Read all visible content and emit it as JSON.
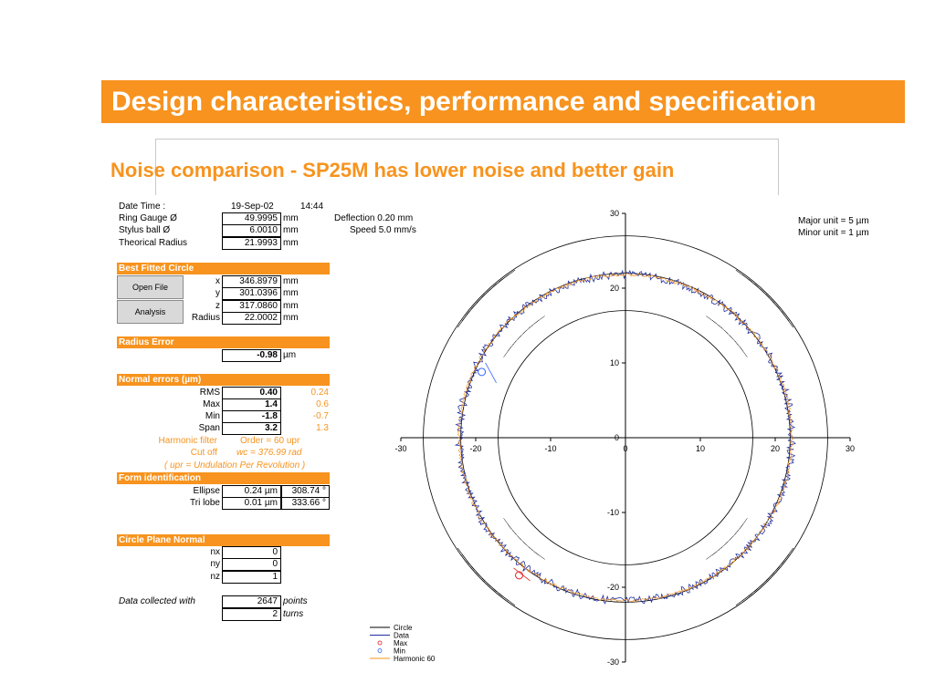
{
  "slide": {
    "title": "Design characteristics, performance and specification",
    "subtitle": "Noise comparison  - SP25M has lower noise and better gain",
    "accent_color": "#f7931e"
  },
  "info": {
    "date_label": "Date Time :",
    "date": "19-Sep-02",
    "time": "14:44",
    "ring_gauge_label": "Ring Gauge Ø",
    "ring_gauge_value": "49.9995",
    "stylus_label": "Stylus ball Ø",
    "stylus_value": "6.0010",
    "theorical_label": "Theorical Radius",
    "theorical_value": "21.9993",
    "unit_mm": "mm",
    "deflection": "Deflection 0.20  mm",
    "speed": "Speed 5.0  mm/s"
  },
  "best_fit": {
    "header": "Best Fitted Circle",
    "x_label": "x",
    "x_value": "346.8979",
    "y_label": "y",
    "y_value": "301.0396",
    "z_label": "z",
    "z_value": "317.0860",
    "radius_label": "Radius",
    "radius_value": "22.0002",
    "unit": "mm"
  },
  "buttons": {
    "open_file": "Open File",
    "analysis": "Analysis"
  },
  "radius_error": {
    "header": "Radius Error",
    "value": "-0.98",
    "unit": "µm"
  },
  "normal_errors": {
    "header": "Normal errors (µm)",
    "rows": [
      {
        "label": "RMS",
        "value": "0.40",
        "alt": "0.24"
      },
      {
        "label": "Max",
        "value": "1.4",
        "alt": "0.6"
      },
      {
        "label": "Min",
        "value": "-1.8",
        "alt": "-0.7"
      },
      {
        "label": "Span",
        "value": "3.2",
        "alt": "1.3"
      }
    ],
    "harmonic_filter_label": "Harmonic filter",
    "harmonic_filter_value": "Order =  60  upr",
    "cutoff_label": "Cut off",
    "cutoff_value": "wc =  376.99 rad",
    "upr_note": "( upr = Undulation Per Revolution )"
  },
  "form_identification": {
    "header": "Form identification",
    "ellipse_label": "Ellipse",
    "ellipse_value": "0.24 µm",
    "ellipse_angle": "308.74  °",
    "trilobe_label": "Tri lobe",
    "trilobe_value": "0.01 µm",
    "trilobe_angle": "333.66  °"
  },
  "circle_plane_normal": {
    "header": "Circle Plane Normal",
    "nx_label": "nx",
    "nx_value": "0",
    "ny_label": "ny",
    "ny_value": "0",
    "nz_label": "nz",
    "nz_value": "1"
  },
  "data_collected": {
    "label": "Data collected with",
    "points_value": "2647",
    "points_unit": "points",
    "turns_value": "2",
    "turns_unit": "turns"
  },
  "chart_data": {
    "type": "scatter",
    "title": "",
    "xlabel": "",
    "ylabel": "",
    "xlim": [
      -30,
      30
    ],
    "ylim": [
      -30,
      30
    ],
    "x_ticks": [
      -30,
      -20,
      -10,
      0,
      10,
      20,
      30
    ],
    "y_ticks": [
      30,
      20,
      10,
      0,
      -10,
      -20,
      -30
    ],
    "scale_notes": [
      "Major unit = 5 µm",
      "Minor unit = 1 µm"
    ],
    "reference_circles_radius": [
      17,
      22,
      27
    ],
    "series": [
      {
        "name": "Circle",
        "color": "#000000",
        "style": "line"
      },
      {
        "name": "Data",
        "color": "#1f2f9e",
        "style": "line"
      },
      {
        "name": "Max",
        "color": "#e02020",
        "style": "marker"
      },
      {
        "name": "Min",
        "color": "#3060ff",
        "style": "marker"
      },
      {
        "name": "Harmonic 60",
        "color": "#f7931e",
        "style": "line"
      }
    ],
    "max_point": {
      "x": -14.2,
      "y": -18.4
    },
    "min_point": {
      "x": -19.2,
      "y": 8.8
    },
    "legend_position": "bottom-left"
  }
}
